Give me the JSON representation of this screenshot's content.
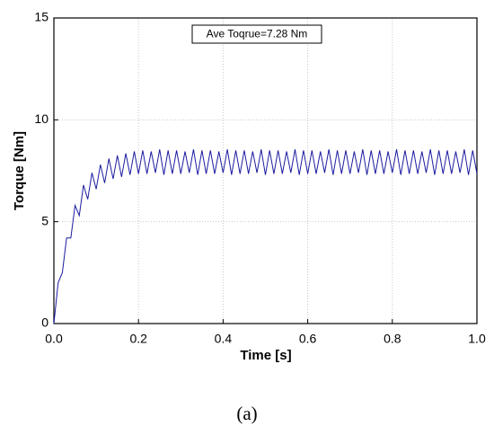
{
  "chart_data": {
    "type": "line",
    "x_label": "Time [s]",
    "y_label": "Torque [Nm]",
    "annotation": "Ave Toqrue=7.28 Nm",
    "caption": "(a)",
    "color": "#1c1ca0",
    "grid": true,
    "xlim": [
      0,
      1
    ],
    "ylim": [
      0,
      15
    ],
    "xticks": [
      {
        "value": 0,
        "label": "0.0"
      },
      {
        "value": 0.2,
        "label": "0.2"
      },
      {
        "value": 0.4,
        "label": "0.4"
      },
      {
        "value": 0.6,
        "label": "0.6"
      },
      {
        "value": 0.8,
        "label": "0.8"
      },
      {
        "value": 1,
        "label": "1.0"
      }
    ],
    "yticks": [
      0,
      5,
      10,
      15
    ],
    "x": [
      0,
      0.01,
      0.02,
      0.03,
      0.04,
      0.05,
      0.06,
      0.07,
      0.08,
      0.09,
      0.1,
      0.11,
      0.12,
      0.13,
      0.14,
      0.15,
      0.16,
      0.17,
      0.18,
      0.19,
      0.2,
      0.21,
      0.22,
      0.23,
      0.24,
      0.25,
      0.26,
      0.27,
      0.28,
      0.29,
      0.3,
      0.31,
      0.32,
      0.33,
      0.34,
      0.35,
      0.36,
      0.37,
      0.38,
      0.39,
      0.4,
      0.41,
      0.42,
      0.43,
      0.44,
      0.45,
      0.46,
      0.47,
      0.48,
      0.49,
      0.5,
      0.51,
      0.52,
      0.53,
      0.54,
      0.55,
      0.56,
      0.57,
      0.58,
      0.59,
      0.6,
      0.61,
      0.62,
      0.63,
      0.64,
      0.65,
      0.66,
      0.67,
      0.68,
      0.69,
      0.7,
      0.71,
      0.72,
      0.73,
      0.74,
      0.75,
      0.76,
      0.77,
      0.78,
      0.79,
      0.8,
      0.81,
      0.82,
      0.83,
      0.84,
      0.85,
      0.86,
      0.87,
      0.88,
      0.89,
      0.9,
      0.91,
      0.92,
      0.93,
      0.94,
      0.95,
      0.96,
      0.97,
      0.98,
      0.99,
      1
    ],
    "values": [
      0,
      2.0,
      2.5,
      4.2,
      4.2,
      5.8,
      5.3,
      6.8,
      6.1,
      7.4,
      6.6,
      7.8,
      6.9,
      8.1,
      7.1,
      8.25,
      7.2,
      8.35,
      7.3,
      8.45,
      7.35,
      8.5,
      7.35,
      8.45,
      7.4,
      8.55,
      7.3,
      8.5,
      7.35,
      8.5,
      7.35,
      8.45,
      7.4,
      8.55,
      7.3,
      8.5,
      7.35,
      8.5,
      7.35,
      8.45,
      7.4,
      8.55,
      7.3,
      8.5,
      7.35,
      8.5,
      7.35,
      8.45,
      7.4,
      8.55,
      7.3,
      8.5,
      7.35,
      8.5,
      7.35,
      8.45,
      7.4,
      8.55,
      7.3,
      8.5,
      7.35,
      8.5,
      7.35,
      8.45,
      7.4,
      8.55,
      7.3,
      8.5,
      7.35,
      8.5,
      7.35,
      8.45,
      7.4,
      8.55,
      7.3,
      8.5,
      7.35,
      8.5,
      7.35,
      8.45,
      7.4,
      8.55,
      7.3,
      8.5,
      7.35,
      8.5,
      7.35,
      8.45,
      7.4,
      8.55,
      7.3,
      8.5,
      7.35,
      8.5,
      7.35,
      8.45,
      7.4,
      8.55,
      7.3,
      8.5,
      7.35
    ]
  }
}
